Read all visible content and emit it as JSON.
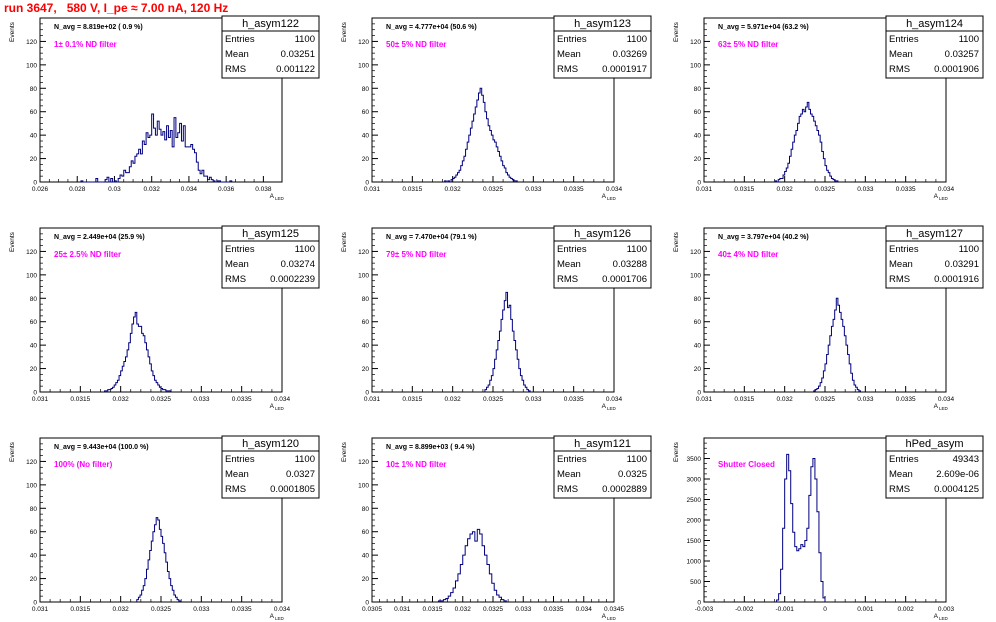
{
  "run_title": "run 3647,   580 V, I_pe ≈ 7.00 nA, 120 Hz",
  "ylabel": "Events",
  "xlabel_main": "A",
  "xlabel_sub": "LED",
  "stats_labels": {
    "entries": "Entries",
    "mean": "Mean",
    "rms": "RMS"
  },
  "colors": {
    "histogram": "#000080",
    "note": "#ff00ff",
    "title": "#ff0000",
    "axis": "#000000"
  },
  "chart_data": [
    {
      "type": "bar",
      "title": "h_asym122",
      "navg": "N_avg = 8.819e+02 ( 0.9 %)",
      "note": "1± 0.1% ND filter",
      "entries": "1100",
      "mean": "0.03251",
      "rms": "0.001122",
      "xlim": [
        0.026,
        0.039
      ],
      "ylim": [
        0,
        140
      ],
      "xticks": [
        0.026,
        0.028,
        0.03,
        0.032,
        0.034,
        0.036,
        0.038
      ],
      "xtick_labels": [
        "0.026",
        "0.028",
        "0.03",
        "0.032",
        "0.034",
        "0.036",
        "0.038"
      ],
      "yticks": [
        0,
        20,
        40,
        60,
        80,
        100,
        120
      ],
      "hist": {
        "x_start": 0.0282,
        "bin_width": 0.0001,
        "values": [
          1,
          0,
          0,
          0,
          0,
          0,
          0,
          0,
          3,
          0,
          0,
          0,
          0,
          2,
          4,
          0,
          3,
          0,
          1,
          0,
          3,
          6,
          5,
          10,
          8,
          8,
          13,
          18,
          16,
          22,
          24,
          28,
          24,
          35,
          32,
          42,
          38,
          40,
          58,
          46,
          40,
          52,
          45,
          40,
          43,
          36,
          48,
          38,
          44,
          30,
          55,
          38,
          42,
          50,
          35,
          48,
          30,
          30,
          30,
          32,
          28,
          25,
          17,
          10,
          7,
          10,
          5,
          5,
          2,
          4,
          2,
          1,
          0,
          1,
          1,
          0,
          0,
          0,
          0,
          0,
          1
        ]
      }
    },
    {
      "type": "bar",
      "title": "h_asym123",
      "navg": "N_avg = 4.777e+04 (50.6 %)",
      "note": "50± 5% ND filter",
      "entries": "1100",
      "mean": "0.03269",
      "rms": "0.0001917",
      "xlim": [
        0.031,
        0.034
      ],
      "ylim": [
        0,
        140
      ],
      "xticks": [
        0.031,
        0.0315,
        0.032,
        0.0325,
        0.033,
        0.0335,
        0.034
      ],
      "xtick_labels": [
        "0.031",
        "0.0315",
        "0.032",
        "0.0325",
        "0.033",
        "0.0335",
        "0.034"
      ],
      "yticks": [
        0,
        20,
        40,
        60,
        80,
        100,
        120
      ],
      "hist": {
        "x_start": 0.0319,
        "bin_width": 2e-05,
        "values": [
          1,
          0,
          1,
          0,
          2,
          3,
          4,
          6,
          8,
          10,
          14,
          18,
          22,
          28,
          34,
          40,
          46,
          52,
          58,
          64,
          70,
          76,
          80,
          74,
          68,
          60,
          54,
          48,
          44,
          40,
          36,
          34,
          30,
          26,
          22,
          18,
          14,
          12,
          8,
          6,
          4,
          3,
          2,
          1,
          1
        ]
      }
    },
    {
      "type": "bar",
      "title": "h_asym124",
      "navg": "N_avg = 5.971e+04 (63.2 %)",
      "note": "63± 5% ND filter",
      "entries": "1100",
      "mean": "0.03257",
      "rms": "0.0001906",
      "xlim": [
        0.031,
        0.034
      ],
      "ylim": [
        0,
        140
      ],
      "xticks": [
        0.031,
        0.0315,
        0.032,
        0.0325,
        0.033,
        0.0335,
        0.034
      ],
      "xtick_labels": [
        "0.031",
        "0.0315",
        "0.032",
        "0.0325",
        "0.033",
        "0.0335",
        "0.034"
      ],
      "yticks": [
        0,
        20,
        40,
        60,
        80,
        100,
        120
      ],
      "hist": {
        "x_start": 0.03188,
        "bin_width": 2e-05,
        "values": [
          1,
          0,
          2,
          3,
          3,
          6,
          9,
          12,
          16,
          22,
          28,
          34,
          40,
          44,
          50,
          56,
          58,
          62,
          60,
          64,
          68,
          62,
          58,
          56,
          52,
          48,
          44,
          40,
          34,
          26,
          20,
          14,
          10,
          8,
          5,
          3,
          2,
          1,
          1
        ]
      }
    },
    {
      "type": "bar",
      "title": "h_asym125",
      "navg": "N_avg = 2.449e+04 (25.9 %)",
      "note": "25± 2.5% ND filter",
      "entries": "1100",
      "mean": "0.03274",
      "rms": "0.0002239",
      "xlim": [
        0.031,
        0.034
      ],
      "ylim": [
        0,
        140
      ],
      "xticks": [
        0.031,
        0.0315,
        0.032,
        0.0325,
        0.033,
        0.0335,
        0.034
      ],
      "xtick_labels": [
        "0.031",
        "0.0315",
        "0.032",
        "0.0325",
        "0.033",
        "0.0335",
        "0.034"
      ],
      "yticks": [
        0,
        20,
        40,
        60,
        80,
        100,
        120
      ],
      "hist": {
        "x_start": 0.0318,
        "bin_width": 2e-05,
        "values": [
          1,
          1,
          2,
          2,
          3,
          4,
          6,
          8,
          10,
          14,
          18,
          22,
          26,
          30,
          36,
          42,
          50,
          58,
          64,
          68,
          58,
          56,
          56,
          50,
          48,
          42,
          36,
          30,
          24,
          18,
          14,
          10,
          8,
          6,
          4,
          3,
          2,
          2,
          1,
          1,
          1
        ]
      }
    },
    {
      "type": "bar",
      "title": "h_asym126",
      "navg": "N_avg = 7.470e+04 (79.1 %)",
      "note": "79± 5% ND filter",
      "entries": "1100",
      "mean": "0.03288",
      "rms": "0.0001706",
      "xlim": [
        0.031,
        0.034
      ],
      "ylim": [
        0,
        140
      ],
      "xticks": [
        0.031,
        0.0315,
        0.032,
        0.0325,
        0.033,
        0.0335,
        0.034
      ],
      "xtick_labels": [
        "0.031",
        "0.0315",
        "0.032",
        "0.0325",
        "0.033",
        "0.0335",
        "0.034"
      ],
      "yticks": [
        0,
        20,
        40,
        60,
        80,
        100,
        120
      ],
      "hist": {
        "x_start": 0.0324,
        "bin_width": 2e-05,
        "values": [
          2,
          4,
          6,
          10,
          14,
          20,
          28,
          36,
          44,
          52,
          62,
          70,
          78,
          85,
          72,
          74,
          62,
          52,
          44,
          36,
          28,
          20,
          14,
          10,
          6,
          4,
          2,
          1
        ]
      }
    },
    {
      "type": "bar",
      "title": "h_asym127",
      "navg": "N_avg = 3.797e+04 (40.2 %)",
      "note": "40± 4% ND filter",
      "entries": "1100",
      "mean": "0.03291",
      "rms": "0.0001916",
      "xlim": [
        0.031,
        0.034
      ],
      "ylim": [
        0,
        140
      ],
      "xticks": [
        0.031,
        0.0315,
        0.032,
        0.0325,
        0.033,
        0.0335,
        0.034
      ],
      "xtick_labels": [
        "0.031",
        "0.0315",
        "0.032",
        "0.0325",
        "0.033",
        "0.0335",
        "0.034"
      ],
      "yticks": [
        0,
        20,
        40,
        60,
        80,
        100,
        120
      ],
      "hist": {
        "x_start": 0.03236,
        "bin_width": 2e-05,
        "values": [
          1,
          2,
          3,
          5,
          8,
          12,
          18,
          24,
          32,
          40,
          48,
          56,
          62,
          70,
          80,
          74,
          68,
          62,
          56,
          48,
          40,
          32,
          24,
          16,
          10,
          6,
          4,
          2,
          1
        ]
      }
    },
    {
      "type": "bar",
      "title": "h_asym120",
      "navg": "N_avg = 9.443e+04 (100.0 %)",
      "note": "100% (No filter)",
      "entries": "1100",
      "mean": "0.0327",
      "rms": "0.0001805",
      "xlim": [
        0.031,
        0.034
      ],
      "ylim": [
        0,
        140
      ],
      "xticks": [
        0.031,
        0.0315,
        0.032,
        0.0325,
        0.033,
        0.0335,
        0.034
      ],
      "xtick_labels": [
        "0.031",
        "0.0315",
        "0.032",
        "0.0325",
        "0.033",
        "0.0335",
        "0.034"
      ],
      "yticks": [
        0,
        20,
        40,
        60,
        80,
        100,
        120
      ],
      "hist": {
        "x_start": 0.0322,
        "bin_width": 2e-05,
        "values": [
          2,
          4,
          6,
          10,
          14,
          20,
          28,
          36,
          44,
          52,
          60,
          66,
          72,
          70,
          62,
          56,
          50,
          42,
          34,
          26,
          20,
          14,
          10,
          6,
          4,
          2,
          1
        ]
      }
    },
    {
      "type": "bar",
      "title": "h_asym121",
      "navg": "N_avg = 8.899e+03 ( 9.4 %)",
      "note": "10± 1% ND filter",
      "entries": "1100",
      "mean": "0.0325",
      "rms": "0.0002889",
      "xlim": [
        0.0305,
        0.0345
      ],
      "ylim": [
        0,
        140
      ],
      "xticks": [
        0.0305,
        0.031,
        0.0315,
        0.032,
        0.0325,
        0.033,
        0.0335,
        0.034,
        0.0345
      ],
      "xtick_labels": [
        "0.0305",
        "0.031",
        "0.0315",
        "0.032",
        "0.0325",
        "0.033",
        "0.0335",
        "0.034",
        "0.0345"
      ],
      "yticks": [
        0,
        20,
        40,
        60,
        80,
        100,
        120
      ],
      "hist": {
        "x_start": 0.0316,
        "bin_width": 4e-05,
        "values": [
          1,
          1,
          2,
          3,
          5,
          8,
          12,
          18,
          24,
          32,
          40,
          48,
          54,
          58,
          60,
          52,
          62,
          58,
          48,
          40,
          32,
          24,
          16,
          10,
          6,
          4,
          2,
          1
        ]
      }
    },
    {
      "type": "bar",
      "title": "hPed_asym",
      "navg": "",
      "note": "Shutter Closed",
      "entries": "49343",
      "mean": "2.609e-06",
      "rms": "0.0004125",
      "xlim": [
        -0.003,
        0.003
      ],
      "ylim": [
        0,
        4000
      ],
      "xticks": [
        -0.003,
        -0.002,
        -0.001,
        0,
        0.001,
        0.002,
        0.003
      ],
      "xtick_labels": [
        "-0.003",
        "-0.002",
        "-0.001",
        "0",
        "0.001",
        "0.002",
        "0.003"
      ],
      "yticks": [
        0,
        500,
        1000,
        1500,
        2000,
        2500,
        3000,
        3500
      ],
      "hist": {
        "x_start": -0.0012,
        "bin_width": 5e-05,
        "values": [
          50,
          200,
          800,
          1800,
          3000,
          3600,
          3200,
          2400,
          1700,
          1350,
          1250,
          1300,
          1400,
          1350,
          1500,
          1800,
          2600,
          3300,
          3500,
          3000,
          2200,
          1200,
          500,
          100
        ]
      }
    }
  ]
}
